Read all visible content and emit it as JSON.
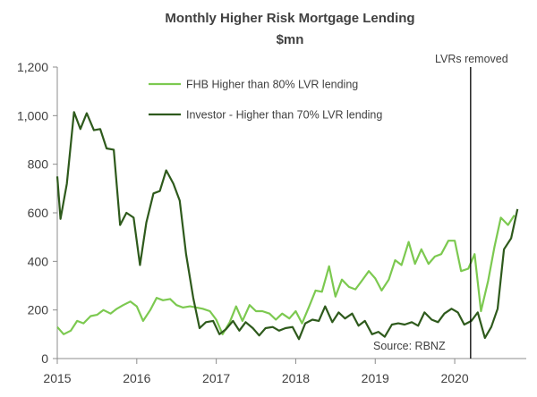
{
  "chart_data": {
    "type": "line",
    "title": "Monthly Higher Risk Mortgage Lending",
    "subtitle": "$mn",
    "xlabel": "",
    "ylabel": "",
    "xlim": [
      2015.0,
      2020.9
    ],
    "ylim": [
      0,
      1200
    ],
    "y_ticks": [
      0,
      200,
      400,
      600,
      800,
      1000,
      1200
    ],
    "y_tick_labels": [
      "0",
      "200",
      "400",
      "600",
      "800",
      "1,000",
      "1,200"
    ],
    "x_ticks": [
      2015,
      2016,
      2017,
      2018,
      2019,
      2020
    ],
    "x_tick_labels": [
      "2015",
      "2016",
      "2017",
      "2018",
      "2019",
      "2020"
    ],
    "grid": false,
    "legend_position": "top-center",
    "series": [
      {
        "name": "FHB Higher than 80% LVR lending",
        "color": "#7cc950",
        "points": [
          [
            2015.0,
            130
          ],
          [
            2015.08,
            100
          ],
          [
            2015.17,
            115
          ],
          [
            2015.25,
            155
          ],
          [
            2015.33,
            145
          ],
          [
            2015.42,
            175
          ],
          [
            2015.5,
            180
          ],
          [
            2015.58,
            200
          ],
          [
            2015.67,
            185
          ],
          [
            2015.75,
            205
          ],
          [
            2015.83,
            220
          ],
          [
            2015.92,
            235
          ],
          [
            2016.0,
            215
          ],
          [
            2016.08,
            155
          ],
          [
            2016.17,
            200
          ],
          [
            2016.25,
            250
          ],
          [
            2016.33,
            240
          ],
          [
            2016.42,
            245
          ],
          [
            2016.5,
            220
          ],
          [
            2016.58,
            210
          ],
          [
            2016.67,
            215
          ],
          [
            2016.75,
            210
          ],
          [
            2016.83,
            205
          ],
          [
            2016.92,
            195
          ],
          [
            2017.0,
            160
          ],
          [
            2017.08,
            100
          ],
          [
            2017.17,
            150
          ],
          [
            2017.25,
            215
          ],
          [
            2017.33,
            155
          ],
          [
            2017.42,
            220
          ],
          [
            2017.5,
            195
          ],
          [
            2017.58,
            195
          ],
          [
            2017.67,
            185
          ],
          [
            2017.75,
            160
          ],
          [
            2017.83,
            185
          ],
          [
            2017.92,
            165
          ],
          [
            2018.0,
            195
          ],
          [
            2018.08,
            145
          ],
          [
            2018.17,
            215
          ],
          [
            2018.25,
            280
          ],
          [
            2018.33,
            275
          ],
          [
            2018.42,
            380
          ],
          [
            2018.5,
            255
          ],
          [
            2018.58,
            325
          ],
          [
            2018.67,
            295
          ],
          [
            2018.75,
            285
          ],
          [
            2018.83,
            320
          ],
          [
            2018.92,
            360
          ],
          [
            2019.0,
            330
          ],
          [
            2019.08,
            280
          ],
          [
            2019.17,
            325
          ],
          [
            2019.25,
            405
          ],
          [
            2019.33,
            385
          ],
          [
            2019.42,
            480
          ],
          [
            2019.5,
            390
          ],
          [
            2019.58,
            450
          ],
          [
            2019.67,
            390
          ],
          [
            2019.75,
            420
          ],
          [
            2019.83,
            430
          ],
          [
            2019.92,
            485
          ],
          [
            2020.0,
            485
          ],
          [
            2020.08,
            360
          ],
          [
            2020.17,
            370
          ],
          [
            2020.25,
            430
          ],
          [
            2020.33,
            195
          ],
          [
            2020.42,
            320
          ],
          [
            2020.5,
            460
          ],
          [
            2020.58,
            580
          ],
          [
            2020.67,
            550
          ],
          [
            2020.75,
            590
          ]
        ]
      },
      {
        "name": "Investor - Higher than 70% LVR lending",
        "color": "#2e5a1c",
        "points": [
          [
            2015.0,
            750
          ],
          [
            2015.04,
            575
          ],
          [
            2015.12,
            720
          ],
          [
            2015.21,
            1015
          ],
          [
            2015.29,
            945
          ],
          [
            2015.37,
            1010
          ],
          [
            2015.46,
            940
          ],
          [
            2015.54,
            945
          ],
          [
            2015.62,
            865
          ],
          [
            2015.71,
            860
          ],
          [
            2015.79,
            550
          ],
          [
            2015.87,
            600
          ],
          [
            2015.96,
            580
          ],
          [
            2016.04,
            385
          ],
          [
            2016.12,
            560
          ],
          [
            2016.21,
            680
          ],
          [
            2016.29,
            690
          ],
          [
            2016.37,
            775
          ],
          [
            2016.46,
            720
          ],
          [
            2016.54,
            650
          ],
          [
            2016.62,
            430
          ],
          [
            2016.71,
            250
          ],
          [
            2016.79,
            125
          ],
          [
            2016.87,
            150
          ],
          [
            2016.96,
            155
          ],
          [
            2017.04,
            100
          ],
          [
            2017.12,
            120
          ],
          [
            2017.21,
            155
          ],
          [
            2017.29,
            115
          ],
          [
            2017.37,
            150
          ],
          [
            2017.46,
            125
          ],
          [
            2017.54,
            95
          ],
          [
            2017.62,
            125
          ],
          [
            2017.71,
            130
          ],
          [
            2017.79,
            115
          ],
          [
            2017.87,
            125
          ],
          [
            2017.96,
            130
          ],
          [
            2018.04,
            80
          ],
          [
            2018.12,
            145
          ],
          [
            2018.21,
            160
          ],
          [
            2018.29,
            155
          ],
          [
            2018.37,
            215
          ],
          [
            2018.46,
            150
          ],
          [
            2018.54,
            190
          ],
          [
            2018.62,
            165
          ],
          [
            2018.71,
            185
          ],
          [
            2018.79,
            135
          ],
          [
            2018.87,
            155
          ],
          [
            2018.96,
            100
          ],
          [
            2019.04,
            110
          ],
          [
            2019.12,
            90
          ],
          [
            2019.21,
            140
          ],
          [
            2019.29,
            145
          ],
          [
            2019.37,
            140
          ],
          [
            2019.46,
            150
          ],
          [
            2019.54,
            135
          ],
          [
            2019.62,
            190
          ],
          [
            2019.71,
            160
          ],
          [
            2019.79,
            150
          ],
          [
            2019.87,
            185
          ],
          [
            2019.96,
            205
          ],
          [
            2020.04,
            190
          ],
          [
            2020.12,
            140
          ],
          [
            2020.21,
            155
          ],
          [
            2020.29,
            190
          ],
          [
            2020.38,
            85
          ],
          [
            2020.46,
            130
          ],
          [
            2020.54,
            205
          ],
          [
            2020.62,
            450
          ],
          [
            2020.71,
            495
          ],
          [
            2020.79,
            615
          ]
        ]
      }
    ],
    "annotations": [
      {
        "text": "LVRs removed",
        "x": 2020.2
      },
      {
        "text": "Source: RBNZ"
      }
    ]
  }
}
